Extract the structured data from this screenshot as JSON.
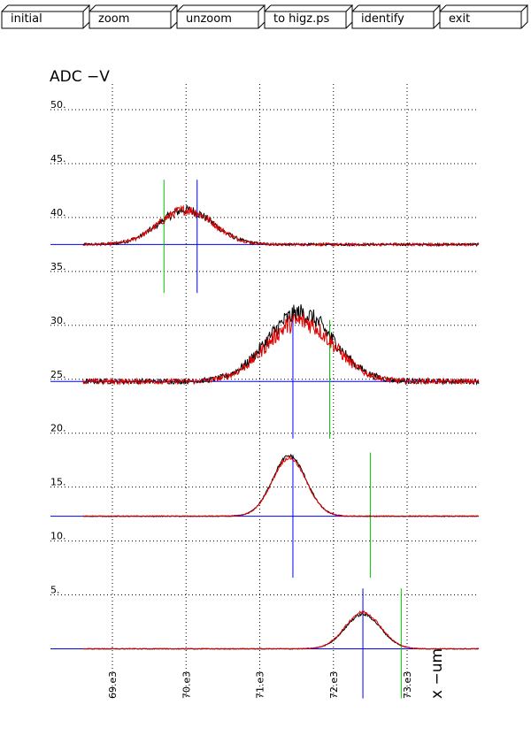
{
  "toolbar": {
    "buttons": [
      {
        "id": "initial",
        "label": "initial"
      },
      {
        "id": "zoom",
        "label": "zoom"
      },
      {
        "id": "unzoom",
        "label": "unzoom"
      },
      {
        "id": "to-higz",
        "label": "to higz.ps"
      },
      {
        "id": "identify",
        "label": "identify"
      },
      {
        "id": "exit",
        "label": "exit"
      }
    ]
  },
  "chart_data": {
    "type": "line",
    "title": "ADC  −V",
    "xlabel": "x  −um",
    "ylabel": "",
    "xlim": [
      68600,
      73500
    ],
    "ylim": [
      0,
      52
    ],
    "x_tick_labels": [
      "69.e3",
      "70.e3",
      "71.e3",
      "72.e3",
      "73.e3"
    ],
    "x_tick_values": [
      69000,
      70000,
      71000,
      72000,
      73000
    ],
    "y_tick_labels": [
      "5.",
      "10.",
      "15.",
      "20.",
      "25.",
      "30.",
      "35.",
      "40.",
      "45.",
      "50."
    ],
    "y_tick_values": [
      5,
      10,
      15,
      20,
      25,
      30,
      35,
      40,
      45,
      50
    ],
    "grid": true,
    "series_colors": {
      "black": "#000000",
      "red": "#e00000",
      "blue": "#0000ff",
      "green": "#00c000"
    },
    "traces": [
      {
        "baseline": 37.5,
        "center": 70000,
        "sigma": 370,
        "amp_black": 3.2,
        "amp_red": 3.2,
        "noise": 0.35,
        "xmin": 68600,
        "xmax": 74400
      },
      {
        "baseline": 24.8,
        "center": 71550,
        "sigma": 450,
        "amp_black": 6.3,
        "amp_red": 5.6,
        "noise": 0.7,
        "xmin": 68600,
        "xmax": 74400
      },
      {
        "baseline": 12.3,
        "center": 71400,
        "sigma": 230,
        "amp_black": 5.6,
        "amp_red": 5.4,
        "noise": 0.12,
        "xmin": 68600,
        "xmax": 74400
      },
      {
        "baseline": 0.0,
        "center": 72400,
        "sigma": 240,
        "amp_black": 3.2,
        "amp_red": 3.4,
        "noise": 0.1,
        "xmin": 68600,
        "xmax": 74400
      }
    ],
    "markers": [
      {
        "color": "blue",
        "x": 70150,
        "y1": 33.0,
        "y2": 43.5,
        "hline_y": 37.5
      },
      {
        "color": "green",
        "x": 69700,
        "y1": 33.0,
        "y2": 43.5
      },
      {
        "color": "blue",
        "x": 71450,
        "y1": 19.5,
        "y2": 31.0,
        "hline_y": 24.8
      },
      {
        "color": "green",
        "x": 71950,
        "y1": 19.5,
        "y2": 30.5
      },
      {
        "color": "blue",
        "x": 71450,
        "y1": 6.6,
        "y2": 18.0,
        "hline_y": 12.3
      },
      {
        "color": "green",
        "x": 72500,
        "y1": 6.6,
        "y2": 18.2
      },
      {
        "color": "blue",
        "x": 72400,
        "y1": -4.6,
        "y2": 5.6,
        "hline_y": 0.0
      },
      {
        "color": "green",
        "x": 72920,
        "y1": -4.6,
        "y2": 5.6
      }
    ]
  }
}
